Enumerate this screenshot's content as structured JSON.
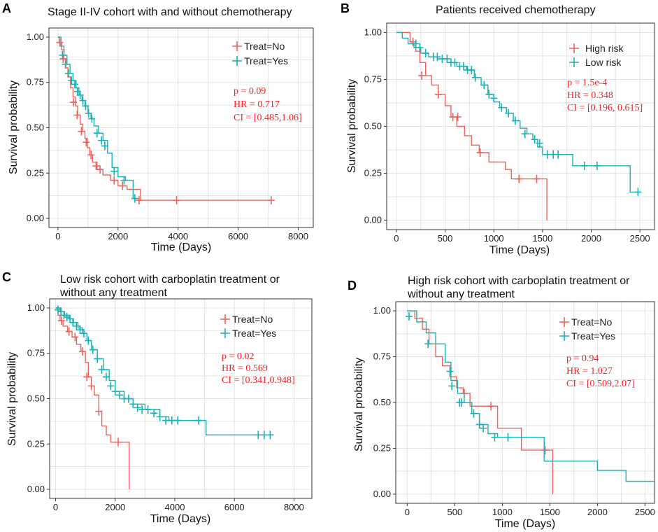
{
  "colors": {
    "red": "#f0625a",
    "teal": "#19b1b6",
    "stat": "#ff2020"
  },
  "chart_data": [
    {
      "type": "line",
      "panel": "A",
      "title": [
        "Stage II-IV  cohort with and without chemotherapy"
      ],
      "xlabel": "Time (Days)",
      "ylabel": "Survival probability",
      "xlim": [
        -300,
        8500
      ],
      "ylim": [
        -0.05,
        1.05
      ],
      "xticks": [
        0,
        2000,
        4000,
        6000,
        8000
      ],
      "yticks": [
        "0.00",
        "0.25",
        "0.50",
        "0.75",
        "1.00"
      ],
      "legend": [
        "Treat=No",
        "Treat=Yes"
      ],
      "stats": [
        "p = 0.09",
        "HR = 0.717",
        "CI = [0.485,1.06]"
      ],
      "series": [
        {
          "name": "Treat=No",
          "color": "red",
          "x": [
            0,
            50,
            120,
            200,
            260,
            330,
            420,
            500,
            580,
            660,
            740,
            820,
            900,
            980,
            1060,
            1150,
            1300,
            1500,
            1750,
            2000,
            2300,
            2750,
            3500,
            3950,
            7100
          ],
          "y": [
            1.0,
            0.97,
            0.93,
            0.88,
            0.83,
            0.78,
            0.72,
            0.67,
            0.62,
            0.57,
            0.52,
            0.48,
            0.44,
            0.39,
            0.35,
            0.31,
            0.27,
            0.24,
            0.21,
            0.18,
            0.16,
            0.1,
            0.1,
            0.1,
            0.1
          ],
          "censor_x": [
            60,
            170,
            520,
            640,
            780,
            940,
            1100,
            1270,
            1400,
            1870,
            2150,
            2700,
            3950,
            7100
          ],
          "censor_y": [
            0.97,
            0.88,
            0.64,
            0.57,
            0.48,
            0.42,
            0.35,
            0.29,
            0.27,
            0.21,
            0.18,
            0.1,
            0.1,
            0.1
          ]
        },
        {
          "name": "Treat=Yes",
          "color": "teal",
          "x": [
            0,
            100,
            200,
            300,
            400,
            500,
            600,
            700,
            800,
            900,
            1000,
            1100,
            1200,
            1350,
            1500,
            1650,
            1800,
            2000,
            2250,
            2500,
            2600
          ],
          "y": [
            1.0,
            0.95,
            0.9,
            0.85,
            0.8,
            0.76,
            0.72,
            0.68,
            0.65,
            0.62,
            0.58,
            0.55,
            0.51,
            0.47,
            0.43,
            0.36,
            0.28,
            0.23,
            0.21,
            0.11,
            0.11
          ],
          "censor_x": [
            150,
            250,
            350,
            450,
            560,
            650,
            740,
            830,
            920,
            1020,
            1130,
            1300,
            1450,
            1560,
            1870,
            2200,
            2560
          ],
          "censor_y": [
            0.9,
            0.85,
            0.8,
            0.76,
            0.74,
            0.7,
            0.68,
            0.65,
            0.62,
            0.58,
            0.55,
            0.47,
            0.43,
            0.4,
            0.26,
            0.21,
            0.11
          ]
        }
      ]
    },
    {
      "type": "line",
      "panel": "B",
      "title": [
        "Patients received chemotherapy"
      ],
      "xlabel": "Time (Days)",
      "ylabel": "Survival probability",
      "xlim": [
        -100,
        2650
      ],
      "ylim": [
        -0.05,
        1.05
      ],
      "xticks": [
        0,
        500,
        1000,
        1500,
        2000,
        2500
      ],
      "yticks": [
        "0.00",
        "0.25",
        "0.50",
        "0.75",
        "1.00"
      ],
      "legend": [
        "High risk",
        "Low risk"
      ],
      "stats": [
        "p = 1.5e-4",
        "HR = 0.348",
        "CI = [0.196, 0.615]"
      ],
      "series": [
        {
          "name": "High risk",
          "color": "red",
          "x": [
            0,
            140,
            200,
            240,
            300,
            360,
            430,
            500,
            560,
            620,
            700,
            770,
            850,
            950,
            1120,
            1180,
            1530,
            1545
          ],
          "y": [
            1.0,
            0.95,
            0.9,
            0.84,
            0.77,
            0.72,
            0.67,
            0.61,
            0.55,
            0.5,
            0.45,
            0.4,
            0.36,
            0.31,
            0.27,
            0.22,
            0.22,
            0.0
          ],
          "censor_x": [
            170,
            260,
            430,
            580,
            630,
            860,
            1260,
            1440
          ],
          "censor_y": [
            0.95,
            0.77,
            0.67,
            0.55,
            0.55,
            0.36,
            0.22,
            0.22
          ]
        },
        {
          "name": "Low risk",
          "color": "teal",
          "x": [
            0,
            60,
            120,
            180,
            250,
            330,
            420,
            520,
            620,
            720,
            800,
            870,
            940,
            1000,
            1060,
            1130,
            1200,
            1270,
            1340,
            1400,
            1450,
            1500,
            1600,
            1810,
            2000,
            2400,
            2500
          ],
          "y": [
            1.0,
            0.97,
            0.94,
            0.92,
            0.89,
            0.87,
            0.86,
            0.84,
            0.82,
            0.8,
            0.76,
            0.72,
            0.67,
            0.63,
            0.6,
            0.57,
            0.53,
            0.49,
            0.46,
            0.43,
            0.39,
            0.35,
            0.35,
            0.29,
            0.29,
            0.15,
            0.15
          ],
          "censor_x": [
            200,
            240,
            300,
            380,
            420,
            470,
            520,
            560,
            600,
            650,
            690,
            730,
            770,
            810,
            900,
            950,
            1000,
            1080,
            1150,
            1220,
            1320,
            1420,
            1470,
            1550,
            1610,
            1660,
            1930,
            2060,
            2480
          ],
          "censor_y": [
            0.94,
            0.92,
            0.89,
            0.87,
            0.87,
            0.86,
            0.86,
            0.84,
            0.84,
            0.82,
            0.82,
            0.8,
            0.8,
            0.76,
            0.72,
            0.67,
            0.65,
            0.6,
            0.57,
            0.53,
            0.46,
            0.43,
            0.41,
            0.35,
            0.35,
            0.35,
            0.29,
            0.29,
            0.15
          ]
        }
      ]
    },
    {
      "type": "line",
      "panel": "C",
      "title": [
        "Low risk cohort with carboplatin treatment or",
        "without any treatment"
      ],
      "xlabel": "Time (Days)",
      "ylabel": "Survival probability",
      "xlim": [
        -200,
        8600
      ],
      "ylim": [
        -0.05,
        1.05
      ],
      "xticks": [
        0,
        2000,
        4000,
        6000,
        8000
      ],
      "yticks": [
        "0.00",
        "0.25",
        "0.50",
        "0.75",
        "1.00"
      ],
      "legend": [
        "Treat=No",
        "Treat=Yes"
      ],
      "stats": [
        "p = 0.02",
        "HR = 0.569",
        "CI = [0.341,0.948]"
      ],
      "series": [
        {
          "name": "Treat=No",
          "color": "red",
          "x": [
            0,
            80,
            150,
            250,
            400,
            550,
            700,
            850,
            1000,
            1100,
            1200,
            1300,
            1450,
            1550,
            1700,
            1850,
            2050,
            2450,
            2470
          ],
          "y": [
            1.0,
            0.96,
            0.93,
            0.9,
            0.87,
            0.84,
            0.8,
            0.76,
            0.7,
            0.62,
            0.57,
            0.52,
            0.43,
            0.35,
            0.3,
            0.26,
            0.26,
            0.26,
            0.0
          ],
          "censor_x": [
            200,
            450,
            650,
            900,
            1050,
            1200,
            1450,
            2100
          ],
          "censor_y": [
            0.93,
            0.87,
            0.84,
            0.76,
            0.62,
            0.57,
            0.43,
            0.26
          ]
        },
        {
          "name": "Treat=Yes",
          "color": "teal",
          "x": [
            0,
            150,
            300,
            450,
            600,
            750,
            900,
            1050,
            1200,
            1400,
            1600,
            1800,
            2000,
            2300,
            2600,
            3000,
            3500,
            3800,
            5000,
            5050,
            7300
          ],
          "y": [
            1.0,
            0.98,
            0.96,
            0.94,
            0.92,
            0.89,
            0.86,
            0.82,
            0.77,
            0.72,
            0.66,
            0.6,
            0.54,
            0.5,
            0.47,
            0.44,
            0.4,
            0.38,
            0.38,
            0.3,
            0.3
          ],
          "censor_x": [
            80,
            180,
            280,
            380,
            480,
            580,
            700,
            820,
            950,
            1100,
            1250,
            1400,
            1550,
            1700,
            1850,
            2000,
            2150,
            2300,
            2450,
            2600,
            2750,
            2900,
            3100,
            3300,
            3500,
            3700,
            3900,
            4100,
            4800,
            6800,
            7000,
            7200
          ],
          "censor_y": [
            0.99,
            0.98,
            0.96,
            0.95,
            0.94,
            0.92,
            0.9,
            0.88,
            0.86,
            0.82,
            0.77,
            0.72,
            0.66,
            0.62,
            0.57,
            0.54,
            0.52,
            0.5,
            0.5,
            0.47,
            0.45,
            0.44,
            0.44,
            0.42,
            0.4,
            0.38,
            0.38,
            0.38,
            0.38,
            0.3,
            0.3,
            0.3
          ]
        }
      ]
    },
    {
      "type": "line",
      "panel": "D",
      "title": [
        "High risk cohort with carboplatin treatment or",
        "without any treatment"
      ],
      "xlabel": "Time (Days)",
      "ylabel": "Survival probability",
      "xlim": [
        -120,
        2600
      ],
      "ylim": [
        -0.05,
        1.05
      ],
      "xticks": [
        0,
        500,
        1000,
        1500,
        2000,
        2500
      ],
      "yticks": [
        "0.00",
        "0.25",
        "0.50",
        "0.75",
        "1.00"
      ],
      "legend": [
        "Treat=No",
        "Treat=Yes"
      ],
      "stats": [
        "p = 0.94",
        "HR = 1.027",
        "CI = [0.509,2.07]"
      ],
      "series": [
        {
          "name": "Treat=No",
          "color": "red",
          "x": [
            0,
            80,
            160,
            230,
            300,
            370,
            450,
            520,
            590,
            660,
            850,
            950,
            1200,
            1350,
            1520,
            1530
          ],
          "y": [
            1.0,
            0.96,
            0.9,
            0.82,
            0.75,
            0.7,
            0.64,
            0.58,
            0.55,
            0.48,
            0.48,
            0.36,
            0.24,
            0.24,
            0.24,
            0.0
          ],
          "censor_x": [
            600,
            880,
            1450
          ],
          "censor_y": [
            0.55,
            0.48,
            0.24
          ]
        },
        {
          "name": "Treat=Yes",
          "color": "teal",
          "x": [
            0,
            100,
            200,
            300,
            400,
            460,
            530,
            600,
            680,
            760,
            850,
            950,
            1100,
            1440,
            1550,
            2000,
            2300,
            2600
          ],
          "y": [
            1.0,
            0.94,
            0.88,
            0.82,
            0.72,
            0.62,
            0.55,
            0.5,
            0.44,
            0.38,
            0.33,
            0.31,
            0.31,
            0.18,
            0.18,
            0.13,
            0.07,
            0.07
          ],
          "censor_x": [
            20,
            220,
            450,
            470,
            550,
            570,
            700,
            760,
            800,
            920,
            1060
          ],
          "censor_y": [
            0.97,
            0.82,
            0.67,
            0.59,
            0.5,
            0.5,
            0.44,
            0.38,
            0.36,
            0.31,
            0.31
          ]
        }
      ]
    }
  ]
}
